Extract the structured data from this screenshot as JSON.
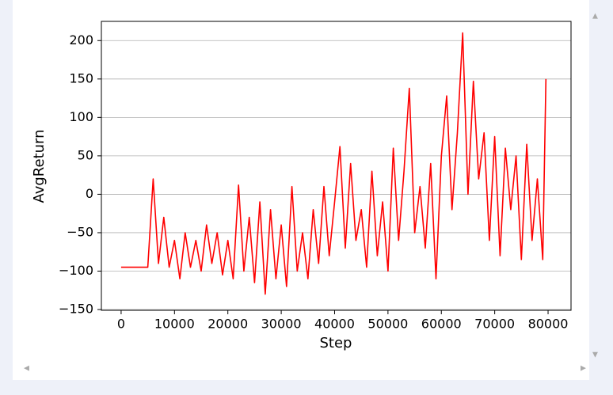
{
  "chart_data": {
    "type": "line",
    "xlabel": "Step",
    "ylabel": "AvgReturn",
    "x": [
      0,
      1000,
      2000,
      3000,
      4000,
      5000,
      6000,
      7000,
      8000,
      9000,
      10000,
      11000,
      12000,
      13000,
      14000,
      15000,
      16000,
      17000,
      18000,
      19000,
      20000,
      21000,
      22000,
      23000,
      24000,
      25000,
      26000,
      27000,
      28000,
      29000,
      30000,
      31000,
      32000,
      33000,
      34000,
      35000,
      36000,
      37000,
      38000,
      39000,
      40000,
      41000,
      42000,
      43000,
      44000,
      45000,
      46000,
      47000,
      48000,
      49000,
      50000,
      51000,
      52000,
      53000,
      54000,
      55000,
      56000,
      57000,
      58000,
      59000,
      60000,
      61000,
      62000,
      63000,
      64000,
      65000,
      66000,
      67000,
      68000,
      69000,
      70000,
      71000,
      72000,
      73000,
      74000,
      75000,
      76000,
      77000,
      78000,
      79000,
      79600
    ],
    "series": [
      {
        "name": "AvgReturn",
        "color": "#ff0000",
        "values": [
          -95,
          -95,
          -95,
          -95,
          -95,
          -95,
          20,
          -90,
          -30,
          -95,
          -60,
          -110,
          -50,
          -95,
          -60,
          -100,
          -40,
          -90,
          -50,
          -105,
          -60,
          -110,
          12,
          -100,
          -30,
          -115,
          -10,
          -130,
          -20,
          -110,
          -40,
          -120,
          10,
          -100,
          -50,
          -110,
          -20,
          -90,
          10,
          -80,
          -10,
          62,
          -70,
          40,
          -60,
          -20,
          -95,
          30,
          -80,
          -10,
          -100,
          60,
          -60,
          30,
          138,
          -50,
          10,
          -70,
          40,
          -110,
          50,
          128,
          -20,
          80,
          210,
          0,
          147,
          20,
          80,
          -60,
          75,
          -80,
          60,
          -20,
          50,
          -85,
          65,
          -60,
          20,
          -85,
          150
        ]
      }
    ],
    "xlim": [
      -3700,
      84300
    ],
    "ylim": [
      -151,
      225
    ],
    "xticks": [
      0,
      10000,
      20000,
      30000,
      40000,
      50000,
      60000,
      70000,
      80000
    ],
    "yticks": [
      {
        "value": -150,
        "label": "−150"
      },
      {
        "value": -100,
        "label": "−100"
      },
      {
        "value": -50,
        "label": "−50"
      },
      0,
      50,
      100,
      150,
      200
    ],
    "grid": "y"
  }
}
